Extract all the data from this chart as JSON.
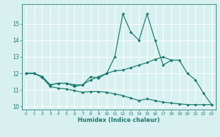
{
  "xlabel": "Humidex (Indice chaleur)",
  "x_values": [
    0,
    1,
    2,
    3,
    4,
    5,
    6,
    7,
    8,
    9,
    10,
    11,
    12,
    13,
    14,
    15,
    16,
    17,
    18,
    19,
    20,
    21,
    22,
    23
  ],
  "line1": [
    12.0,
    12.0,
    11.8,
    11.3,
    11.4,
    11.4,
    11.3,
    11.3,
    11.8,
    11.7,
    12.0,
    13.0,
    15.6,
    14.5,
    14.0,
    15.6,
    14.0,
    12.5,
    12.8,
    12.8,
    12.0,
    11.6,
    10.8,
    10.1
  ],
  "line2": [
    12.0,
    12.0,
    11.8,
    11.3,
    11.4,
    11.4,
    11.2,
    11.3,
    11.6,
    11.8,
    12.0,
    12.15,
    12.2,
    12.35,
    12.5,
    12.65,
    12.85,
    13.0,
    12.8,
    null,
    null,
    null,
    null,
    null
  ],
  "line3": [
    12.0,
    12.0,
    11.75,
    11.2,
    11.1,
    11.05,
    10.95,
    10.85,
    10.9,
    10.9,
    10.85,
    10.75,
    10.65,
    10.5,
    10.35,
    10.45,
    10.35,
    10.25,
    10.2,
    10.15,
    10.1,
    10.1,
    10.1,
    10.1
  ],
  "color": "#1a7a6e",
  "bg_color": "#d8f0f0",
  "grid_color": "#b0d8d8",
  "ylim": [
    9.8,
    16.2
  ],
  "yticks": [
    10,
    11,
    12,
    13,
    14,
    15
  ],
  "xlim": [
    -0.5,
    23.5
  ]
}
